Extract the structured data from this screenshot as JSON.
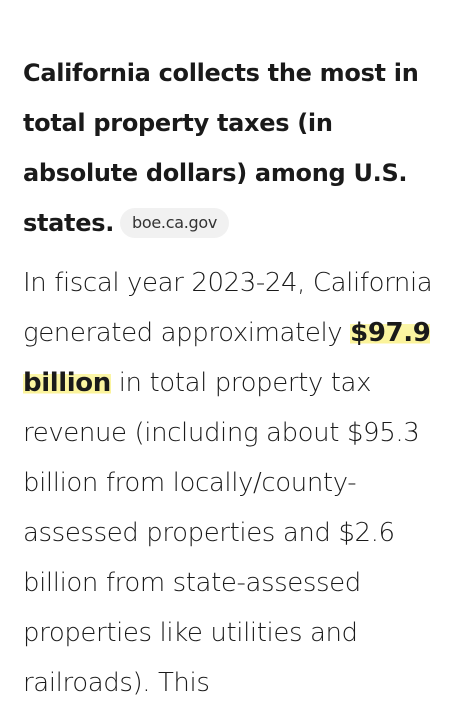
{
  "heading": "California collects the most in total property taxes (in absolute dollars) among U.S. states.",
  "source_chip": "boe.ca.gov",
  "paragraph": {
    "before": "In fiscal year 2023-24, California generated approximately ",
    "highlight": "$97.9 billion",
    "after": " in total property tax revenue (including about $95.3 billion from locally/county-assessed properties and $2.6 billion from state-assessed properties like utilities and railroads). This"
  }
}
